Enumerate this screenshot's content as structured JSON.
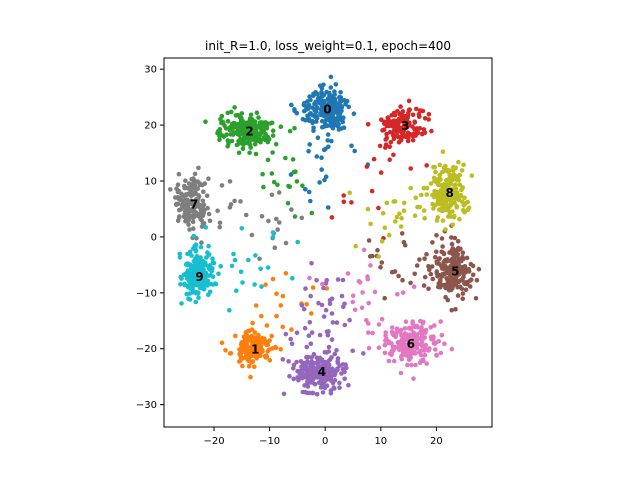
{
  "chart_data": {
    "type": "scatter",
    "title": "init_R=1.0, loss_weight=0.1, epoch=400",
    "xlabel": "",
    "ylabel": "",
    "xlim": [
      -29,
      30
    ],
    "ylim": [
      -34,
      32
    ],
    "xticks": [
      -20,
      -10,
      0,
      10,
      20
    ],
    "yticks": [
      30,
      20,
      10,
      0,
      -10,
      -20,
      -30
    ],
    "xtick_labels": [
      "−20",
      "−10",
      "0",
      "10",
      "20"
    ],
    "ytick_labels": [
      "30",
      "20",
      "10",
      "0",
      "−10",
      "−20",
      "−30"
    ],
    "grid": false,
    "legend": "none",
    "series": [
      {
        "label": "0",
        "color": "#1f77b4",
        "center": [
          0,
          23
        ],
        "spread": [
          2.2,
          1.7
        ],
        "n": 230
      },
      {
        "label": "1",
        "color": "#ff7f0e",
        "center": [
          -13,
          -20
        ],
        "spread": [
          1.6,
          1.5
        ],
        "n": 170
      },
      {
        "label": "2",
        "color": "#2ca02c",
        "center": [
          -14,
          19
        ],
        "spread": [
          2.4,
          1.4
        ],
        "n": 230
      },
      {
        "label": "3",
        "color": "#d62728",
        "center": [
          14,
          20
        ],
        "spread": [
          2.0,
          1.5
        ],
        "n": 150
      },
      {
        "label": "4",
        "color": "#9467bd",
        "center": [
          -1,
          -24
        ],
        "spread": [
          2.4,
          1.8
        ],
        "n": 240
      },
      {
        "label": "5",
        "color": "#8c564b",
        "center": [
          23,
          -6
        ],
        "spread": [
          1.6,
          2.4
        ],
        "n": 230
      },
      {
        "label": "6",
        "color": "#e377c2",
        "center": [
          15,
          -19
        ],
        "spread": [
          2.2,
          1.8
        ],
        "n": 230
      },
      {
        "label": "7",
        "color": "#7f7f7f",
        "center": [
          -24,
          6
        ],
        "spread": [
          1.4,
          2.4
        ],
        "n": 200
      },
      {
        "label": "8",
        "color": "#bcbd22",
        "center": [
          22,
          8
        ],
        "spread": [
          1.7,
          2.4
        ],
        "n": 230
      },
      {
        "label": "9",
        "color": "#17becf",
        "center": [
          -23,
          -7
        ],
        "spread": [
          1.4,
          2.2
        ],
        "n": 200
      }
    ]
  }
}
